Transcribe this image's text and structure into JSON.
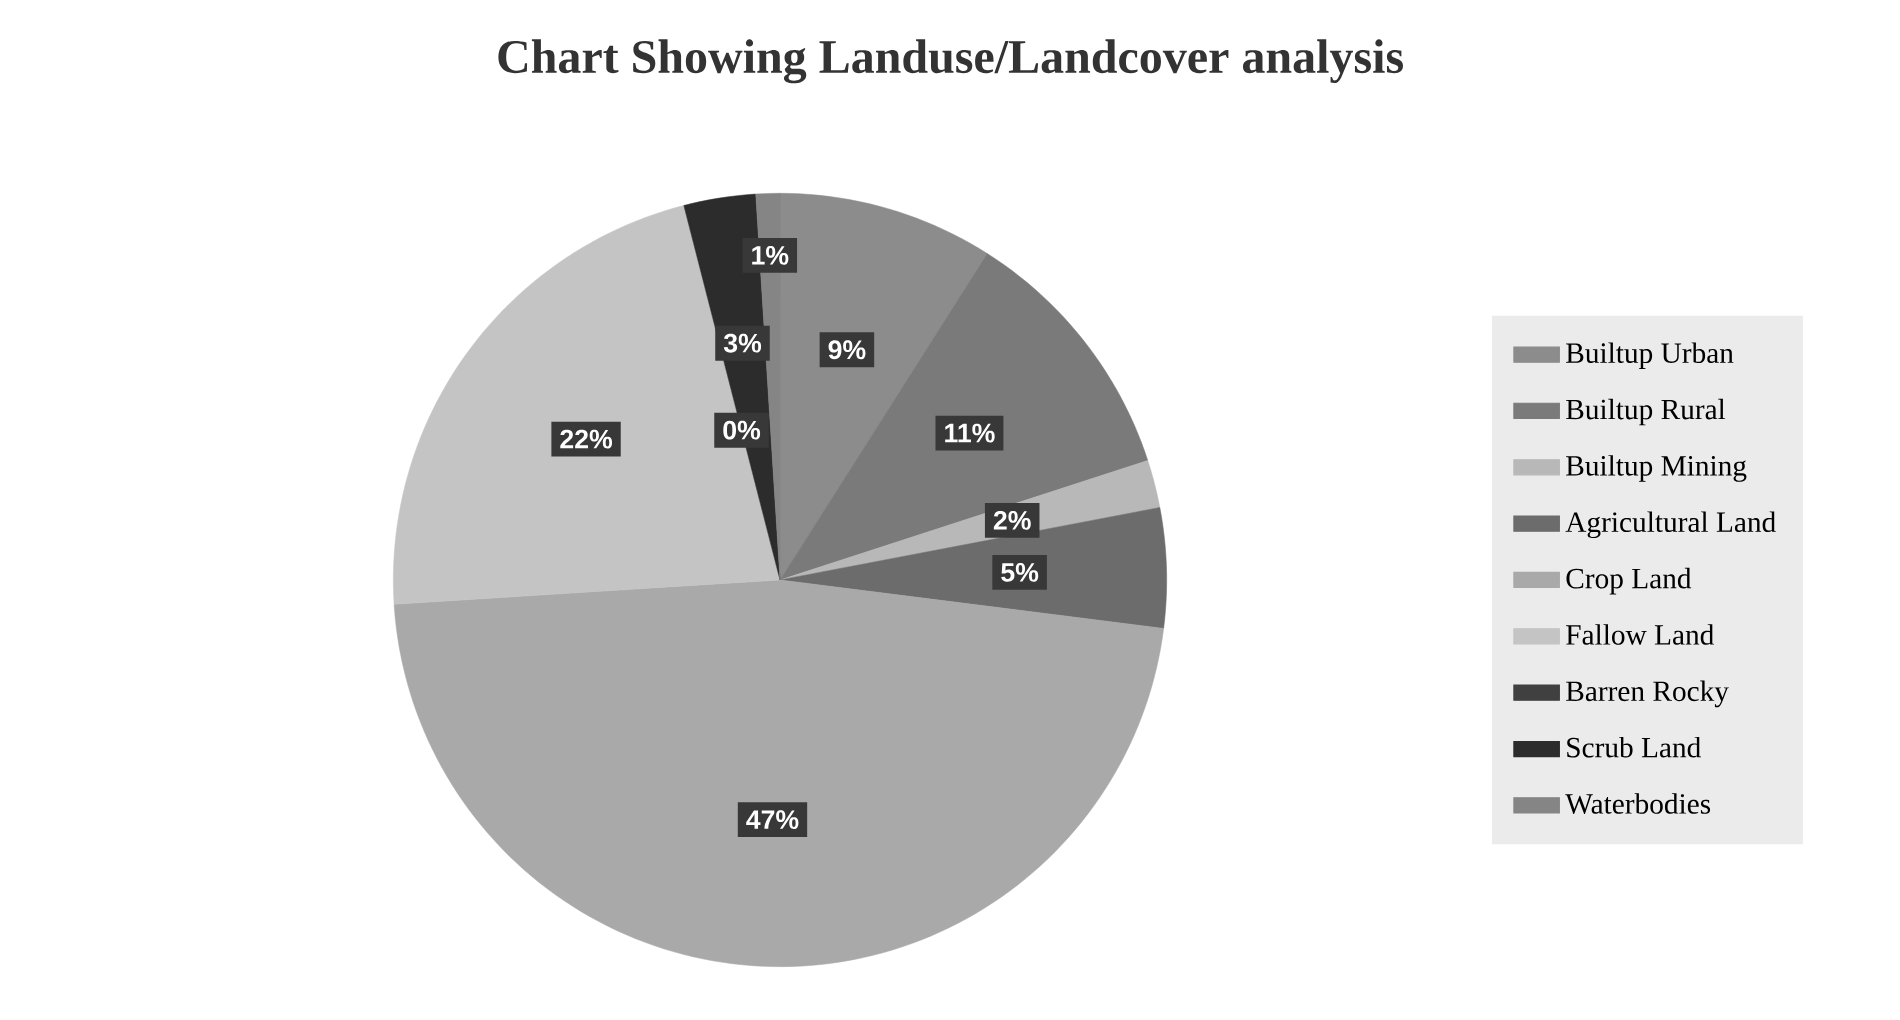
{
  "chart_data": {
    "type": "pie",
    "title": "Chart Showing Landuse/Landcover analysis",
    "categories": [
      "Builtup Urban",
      "Builtup Rural",
      "Builtup Mining",
      "Agricultural Land",
      "Crop Land",
      "Fallow Land",
      "Barren Rocky",
      "Scrub Land",
      "Waterbodies"
    ],
    "values": [
      9,
      11,
      2,
      5,
      47,
      22,
      0,
      3,
      1
    ],
    "value_labels": [
      "9%",
      "11%",
      "2%",
      "5%",
      "47%",
      "22%",
      "0%",
      "3%",
      "1%"
    ],
    "colors": [
      "#8c8c8c",
      "#7a7a7a",
      "#b8b8b8",
      "#6c6c6c",
      "#a9a9a9",
      "#c4c4c4",
      "#404040",
      "#2c2c2c",
      "#858585"
    ],
    "legend": "right"
  }
}
